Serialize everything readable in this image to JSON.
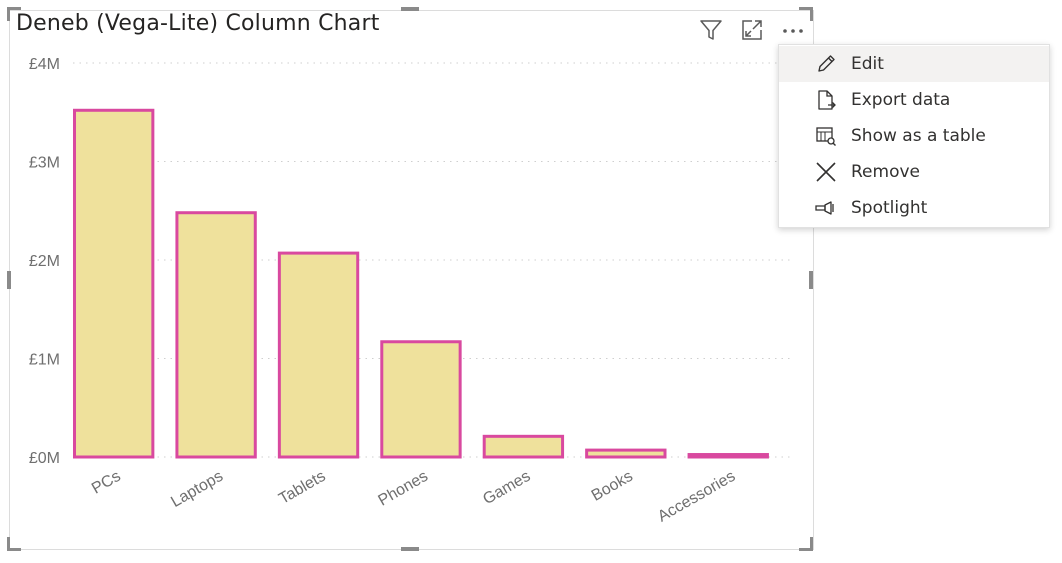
{
  "visual": {
    "title": "Deneb (Vega-Lite) Column Chart",
    "header_icons": [
      "filter-icon",
      "focus-mode-icon",
      "more-options-icon"
    ]
  },
  "context_menu": {
    "items": [
      {
        "label": "Edit",
        "icon": "pencil-icon",
        "highlighted": true
      },
      {
        "label": "Export data",
        "icon": "export-data-icon",
        "highlighted": false
      },
      {
        "label": "Show as a table",
        "icon": "table-view-icon",
        "highlighted": false
      },
      {
        "label": "Remove",
        "icon": "close-icon",
        "highlighted": false
      },
      {
        "label": "Spotlight",
        "icon": "spotlight-icon",
        "highlighted": false
      }
    ]
  },
  "chart_data": {
    "type": "bar",
    "categories": [
      "PCs",
      "Laptops",
      "Tablets",
      "Phones",
      "Games",
      "Books",
      "Accessories"
    ],
    "values": [
      3520000,
      2480000,
      2070000,
      1170000,
      210000,
      70000,
      25000
    ],
    "title": "Deneb (Vega-Lite) Column Chart",
    "xlabel": "",
    "ylabel": "",
    "ylim": [
      0,
      4000000
    ],
    "yticks": [
      0,
      1000000,
      2000000,
      3000000,
      4000000
    ],
    "ytick_labels": [
      "£0M",
      "£1M",
      "£2M",
      "£3M",
      "£4M"
    ],
    "grid": true,
    "bar_fill": "#efe19c",
    "bar_stroke": "#d9499f",
    "axis_label_color": "#6f6f6f"
  },
  "colors": {
    "grid": "#cfcfcf",
    "menu_highlight": "#f3f2f1",
    "title": "#252423"
  }
}
